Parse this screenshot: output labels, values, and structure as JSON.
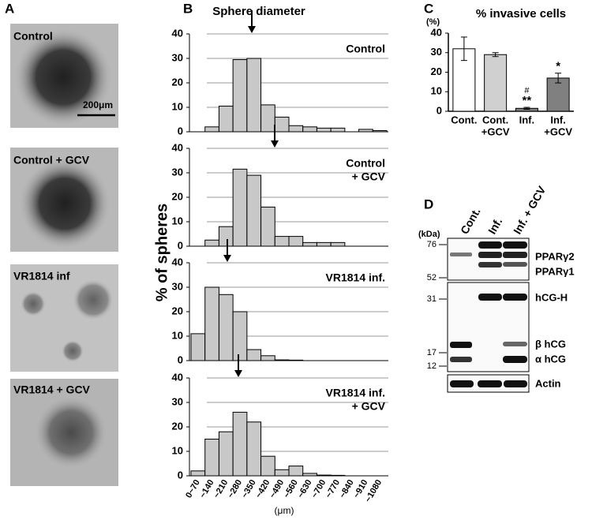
{
  "panel_a": {
    "letter": "A",
    "images": [
      "Control",
      "Control + GCV",
      "VR1814 inf",
      "VR1814 + GCV"
    ],
    "scale_bar": "200μm"
  },
  "panel_b": {
    "letter": "B",
    "title": "Sphere diameter",
    "y_label": "% of spheres",
    "x_label": "(μm)"
  },
  "panel_c": {
    "letter": "C"
  },
  "panel_d": {
    "letter": "D",
    "unit": "(kDa)",
    "lanes": [
      "Cont.",
      "Inf.",
      "Inf. + GCV"
    ],
    "markers": [
      76,
      52,
      31,
      17,
      12
    ],
    "bands": [
      "PPARγ2",
      "PPARγ1",
      "hCG-H",
      "β hCG",
      "α hCG",
      "Actin"
    ]
  },
  "chart_data": [
    {
      "type": "bar",
      "label": [
        "Control"
      ],
      "color": "#c8c8c8",
      "values": [
        0,
        2,
        10.5,
        29.5,
        30,
        11,
        6,
        2.5,
        2,
        1.5,
        1.5,
        0,
        1,
        0.5
      ],
      "ylim": [
        0,
        40
      ],
      "yticks": [
        0,
        10,
        20,
        30,
        40
      ],
      "grid": true
    },
    {
      "type": "bar",
      "label": [
        "Control",
        "+ GCV"
      ],
      "color": "#c8c8c8",
      "values": [
        0,
        2.5,
        8,
        31.5,
        29,
        16,
        4,
        4,
        1.5,
        1.5,
        1.5,
        0,
        0,
        0
      ],
      "ylim": [
        0,
        40
      ],
      "yticks": [
        0,
        10,
        20,
        30,
        40
      ],
      "grid": true
    },
    {
      "type": "bar",
      "label": [
        "VR1814 inf."
      ],
      "color": "#c8c8c8",
      "values": [
        11,
        30,
        27,
        20,
        4.5,
        2,
        0.3,
        0.2,
        0,
        0,
        0,
        0,
        0,
        0
      ],
      "ylim": [
        0,
        40
      ],
      "yticks": [
        0,
        10,
        20,
        30,
        40
      ],
      "grid": true
    },
    {
      "type": "bar",
      "label": [
        "VR1814 inf.",
        "+ GCV"
      ],
      "color": "#c8c8c8",
      "categories": [
        "0~70",
        "~140",
        "~210",
        "~280",
        "~350",
        "~420",
        "~490",
        "~560",
        "~630",
        "~700",
        "~770",
        "~840",
        "~910",
        "~1080"
      ],
      "values": [
        2,
        15,
        18,
        26,
        22,
        8,
        2.5,
        4,
        1,
        0.3,
        0.2,
        0,
        0,
        0
      ],
      "ylim": [
        0,
        40
      ],
      "yticks": [
        0,
        10,
        20,
        30,
        40
      ],
      "grid": true
    },
    {
      "type": "errorbar",
      "title": "% invasive cells",
      "y_unit": "(%)",
      "categories": [
        [
          "Cont."
        ],
        [
          "Cont.",
          "+GCV"
        ],
        [
          "Inf."
        ],
        [
          "Inf.",
          "+GCV"
        ]
      ],
      "values": [
        32,
        29,
        1.5,
        17
      ],
      "errors": [
        6,
        1,
        0.5,
        2.5
      ],
      "colors": [
        "#ffffff",
        "#d0d0d0",
        "#808080",
        "#808080"
      ],
      "significance": [
        null,
        null,
        [
          "#",
          "**"
        ],
        [
          "*"
        ]
      ],
      "ylim": [
        0,
        40
      ],
      "yticks": [
        0,
        10,
        20,
        30,
        40
      ],
      "grid": false
    }
  ]
}
